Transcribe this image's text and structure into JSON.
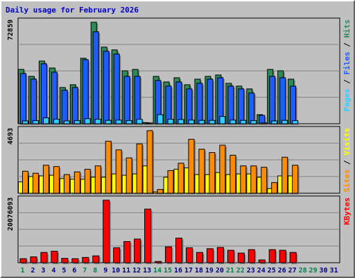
{
  "chart_data": {
    "type": "bar",
    "title": "Daily usage for February 2026",
    "days": [
      "1",
      "2",
      "3",
      "4",
      "5",
      "6",
      "7",
      "8",
      "9",
      "10",
      "11",
      "12",
      "13",
      "14",
      "15",
      "16",
      "17",
      "18",
      "19",
      "20",
      "21",
      "22",
      "23",
      "24",
      "25",
      "26",
      "27",
      "28",
      "29",
      "30",
      "31"
    ],
    "weekend_days": [
      "1",
      "7",
      "8",
      "14",
      "15",
      "21",
      "22",
      "28",
      "29"
    ],
    "panels": [
      {
        "name": "top",
        "max_label": "72859",
        "ymax": 72859,
        "series": [
          {
            "name": "Hits",
            "color": "#2e8b57",
            "values": [
              39000,
              34000,
              45000,
              40000,
              26000,
              28000,
              47000,
              72859,
              55000,
              53000,
              38000,
              39000,
              800,
              34000,
              30000,
              33000,
              28000,
              32000,
              34000,
              35000,
              29000,
              27000,
              25000,
              6500,
              39000,
              38000,
              32000,
              null,
              null,
              null,
              null
            ]
          },
          {
            "name": "Files",
            "color": "#1e5cff",
            "values": [
              36000,
              32000,
              43000,
              37000,
              24000,
              26000,
              46000,
              66000,
              52000,
              50000,
              34000,
              34000,
              600,
              31000,
              27000,
              30000,
              25000,
              29000,
              32000,
              33000,
              27000,
              25000,
              22000,
              6000,
              34000,
              33000,
              27000,
              null,
              null,
              null,
              null
            ]
          },
          {
            "name": "Pages",
            "color": "#33ccff",
            "values": [
              2000,
              2200,
              4200,
              3200,
              2000,
              2200,
              3600,
              3200,
              2400,
              2600,
              2200,
              3200,
              400,
              6500,
              3200,
              3000,
              2600,
              2400,
              2400,
              5200,
              2600,
              2400,
              2200,
              600,
              2000,
              2400,
              2200,
              null,
              null,
              null,
              null
            ]
          }
        ]
      },
      {
        "name": "middle",
        "max_label": "4693",
        "ymax": 4693,
        "series": [
          {
            "name": "Visits",
            "color": "#ffff00",
            "values": [
              850,
              1250,
              1300,
              1350,
              1100,
              1050,
              1050,
              1200,
              1200,
              1450,
              1350,
              1450,
              2050,
              100,
              1200,
              1800,
              1900,
              1400,
              1400,
              1550,
              1400,
              1450,
              1450,
              1200,
              350,
              1300,
              1300,
              null,
              null,
              null,
              null
            ]
          },
          {
            "name": "Sites",
            "color": "#ff8c00",
            "values": [
              1650,
              1500,
              2100,
              2000,
              1400,
              1600,
              1800,
              2050,
              3900,
              3250,
              2650,
              3700,
              4693,
              280,
              1700,
              2250,
              4050,
              3300,
              3050,
              3600,
              2850,
              2050,
              2050,
              1950,
              800,
              2700,
              2100,
              null,
              null,
              null,
              null
            ]
          }
        ]
      },
      {
        "name": "bottom",
        "max_label": "20076093",
        "ymax": 20076093,
        "series": [
          {
            "name": "KBytes",
            "color": "#ff0000",
            "values": [
              1300000,
              1900000,
              3300000,
              3700000,
              1400000,
              1300000,
              1700000,
              2200000,
              20076093,
              4800000,
              6800000,
              7600000,
              17200000,
              400000,
              5100000,
              7900000,
              4800000,
              3300000,
              4500000,
              4900000,
              4000000,
              3100000,
              4200000,
              900000,
              4200000,
              4000000,
              3300000,
              null,
              null,
              null,
              null
            ]
          }
        ]
      }
    ],
    "legends": {
      "top": [
        {
          "text": "Pages",
          "color": "#33ccff"
        },
        {
          "text": " / ",
          "color": "#000000"
        },
        {
          "text": "Files",
          "color": "#1e5cff"
        },
        {
          "text": " / ",
          "color": "#000000"
        },
        {
          "text": "Hits",
          "color": "#2e8b57"
        }
      ],
      "middle": [
        {
          "text": "Sites",
          "color": "#ff8c00"
        },
        {
          "text": " / ",
          "color": "#000000"
        },
        {
          "text": "Visits",
          "color": "#ffff00"
        }
      ],
      "bottom": [
        {
          "text": "KBytes",
          "color": "#ff0000"
        }
      ]
    },
    "colors": {
      "title": "#0000cc",
      "weekday_label": "#000080",
      "weekend_label": "#00804f",
      "grid": "#808080"
    }
  }
}
